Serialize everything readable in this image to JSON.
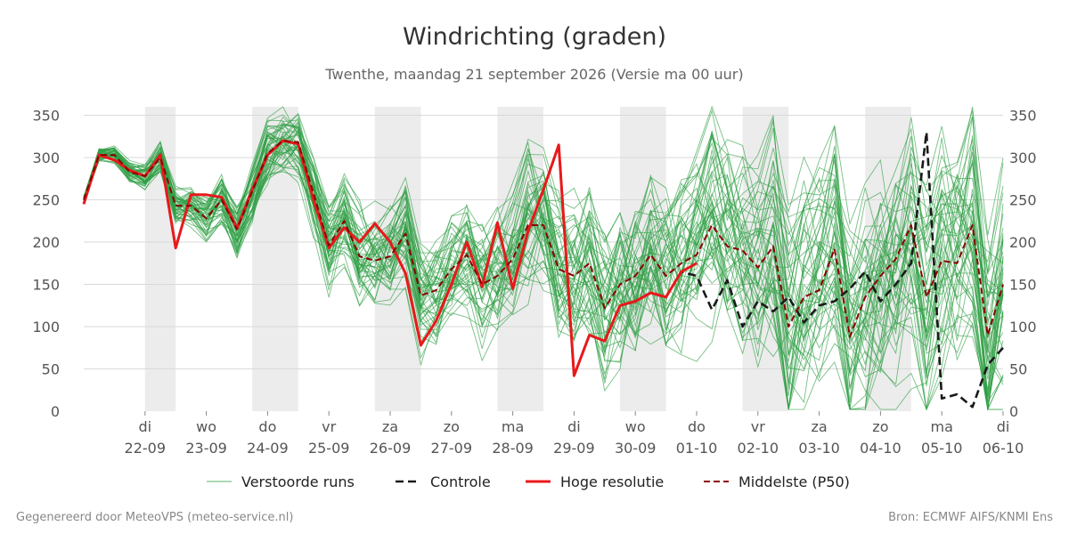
{
  "title": "Windrichting (graden)",
  "subtitle": "Twenthe, maandag 21 september 2026 (Versie ma 00 uur)",
  "footer_left": "Gegenereerd door MeteoVPS (meteo-service.nl)",
  "footer_right": "Bron: ECMWF AIFS/KNMI Ens",
  "colors": {
    "ensemble": "#2e9e44",
    "control": "#1a1a1a",
    "high_res": "#e8191a",
    "median": "#8b0000",
    "night_band": "#ececec",
    "grid": "#d9d9d9"
  },
  "chart_data": {
    "type": "line",
    "title": "Windrichting (graden)",
    "xlabel": "",
    "ylabel": "",
    "ylim": [
      0,
      360
    ],
    "yticks": [
      0,
      50,
      100,
      150,
      200,
      250,
      300,
      350
    ],
    "xlim": [
      0,
      15
    ],
    "x_unit": "days since 21-09 00:00",
    "grid": true,
    "legend_position": "bottom",
    "x_ticks": [
      {
        "x": 1,
        "day": "di",
        "date": "22-09"
      },
      {
        "x": 2,
        "day": "wo",
        "date": "23-09"
      },
      {
        "x": 3,
        "day": "do",
        "date": "24-09"
      },
      {
        "x": 4,
        "day": "vr",
        "date": "25-09"
      },
      {
        "x": 5,
        "day": "za",
        "date": "26-09"
      },
      {
        "x": 6,
        "day": "zo",
        "date": "27-09"
      },
      {
        "x": 7,
        "day": "ma",
        "date": "28-09"
      },
      {
        "x": 8,
        "day": "di",
        "date": "29-09"
      },
      {
        "x": 9,
        "day": "wo",
        "date": "30-09"
      },
      {
        "x": 10,
        "day": "do",
        "date": "01-10"
      },
      {
        "x": 11,
        "day": "vr",
        "date": "02-10"
      },
      {
        "x": 12,
        "day": "za",
        "date": "03-10"
      },
      {
        "x": 13,
        "day": "zo",
        "date": "04-10"
      },
      {
        "x": 14,
        "day": "ma",
        "date": "05-10"
      },
      {
        "x": 15,
        "day": "di",
        "date": "06-10"
      }
    ],
    "night_bands": [
      [
        1,
        1.5
      ],
      [
        2.75,
        3.5
      ],
      [
        4.75,
        5.5
      ],
      [
        6.75,
        7.5
      ],
      [
        8.75,
        9.5
      ],
      [
        10.75,
        11.5
      ],
      [
        12.75,
        13.5
      ]
    ],
    "legend": [
      {
        "key": "ensemble",
        "label": "Verstoorde runs",
        "style": "thin"
      },
      {
        "key": "control",
        "label": "Controle",
        "style": "dashed"
      },
      {
        "key": "high_res",
        "label": "Hoge resolutie",
        "style": "solid"
      },
      {
        "key": "median",
        "label": "Middelste (P50)",
        "style": "dashed"
      }
    ],
    "series": [
      {
        "key": "high_res",
        "name": "Hoge resolutie",
        "x": [
          0.0,
          0.25,
          0.5,
          0.75,
          1.0,
          1.25,
          1.5,
          1.75,
          2.0,
          2.25,
          2.5,
          2.75,
          3.0,
          3.25,
          3.5,
          3.75,
          4.0,
          4.25,
          4.5,
          4.75,
          5.0,
          5.25,
          5.5,
          5.75,
          6.0,
          6.25,
          6.5,
          6.75,
          7.0,
          7.25,
          7.5,
          7.75,
          8.0,
          8.25,
          8.5,
          8.75,
          9.0,
          9.25,
          9.5,
          9.75,
          10.0
        ],
        "y": [
          245,
          303,
          297,
          285,
          278,
          303,
          193,
          256,
          256,
          253,
          216,
          262,
          303,
          320,
          316,
          250,
          193,
          217,
          200,
          222,
          200,
          163,
          78,
          107,
          150,
          200,
          147,
          223,
          145,
          213,
          262,
          315,
          42,
          90,
          83,
          125,
          130,
          140,
          135,
          165,
          175
        ]
      },
      {
        "key": "control",
        "name": "Controle",
        "x": [
          0.0,
          0.25,
          0.5,
          0.75,
          1.0,
          1.25,
          1.5,
          1.75,
          2.0,
          2.25,
          2.5,
          2.75,
          3.0,
          3.25,
          3.5,
          3.75,
          4.0,
          4.25,
          4.5,
          4.75,
          5.0,
          5.25,
          5.5,
          5.75,
          6.0,
          6.25,
          6.5,
          6.75,
          7.0,
          7.25,
          7.5,
          7.75,
          8.0,
          8.25,
          8.5,
          8.75,
          9.0,
          9.25,
          9.5,
          9.75,
          10.0,
          10.25,
          10.5,
          10.75,
          11.0,
          11.25,
          11.5,
          11.75,
          12.0,
          12.25,
          12.5,
          12.75,
          13.0,
          13.25,
          13.5,
          13.75,
          14.0,
          14.25,
          14.5,
          14.75,
          15.0
        ],
        "y": [
          245,
          303,
          297,
          285,
          278,
          303,
          193,
          256,
          256,
          253,
          216,
          262,
          303,
          320,
          316,
          250,
          193,
          217,
          200,
          222,
          200,
          163,
          78,
          107,
          150,
          200,
          147,
          223,
          145,
          213,
          262,
          315,
          42,
          90,
          83,
          125,
          130,
          140,
          135,
          165,
          160,
          120,
          155,
          100,
          130,
          118,
          135,
          105,
          125,
          130,
          145,
          165,
          130,
          150,
          175,
          330,
          15,
          20,
          5,
          55,
          75
        ]
      },
      {
        "key": "median",
        "name": "Middelste (P50)",
        "x": [
          0.0,
          0.25,
          0.5,
          0.75,
          1.0,
          1.25,
          1.5,
          1.75,
          2.0,
          2.25,
          2.5,
          2.75,
          3.0,
          3.25,
          3.5,
          3.75,
          4.0,
          4.25,
          4.5,
          4.75,
          5.0,
          5.25,
          5.5,
          5.75,
          6.0,
          6.25,
          6.5,
          6.75,
          7.0,
          7.25,
          7.5,
          7.75,
          8.0,
          8.25,
          8.5,
          8.75,
          9.0,
          9.25,
          9.5,
          9.75,
          10.0,
          10.25,
          10.5,
          10.75,
          11.0,
          11.25,
          11.5,
          11.75,
          12.0,
          12.25,
          12.5,
          12.75,
          13.0,
          13.25,
          13.5,
          13.75,
          14.0,
          14.25,
          14.5,
          14.75,
          15.0
        ],
        "y": [
          250,
          303,
          303,
          283,
          278,
          300,
          243,
          243,
          228,
          250,
          215,
          260,
          305,
          320,
          318,
          257,
          196,
          225,
          183,
          178,
          183,
          210,
          137,
          143,
          168,
          185,
          150,
          160,
          180,
          220,
          220,
          168,
          160,
          175,
          122,
          150,
          160,
          185,
          160,
          175,
          185,
          220,
          195,
          190,
          170,
          195,
          100,
          135,
          143,
          192,
          88,
          135,
          160,
          180,
          220,
          135,
          178,
          175,
          220,
          90,
          150
        ]
      }
    ],
    "ensemble_members": 50,
    "ensemble_range": [
      0,
      360
    ]
  }
}
